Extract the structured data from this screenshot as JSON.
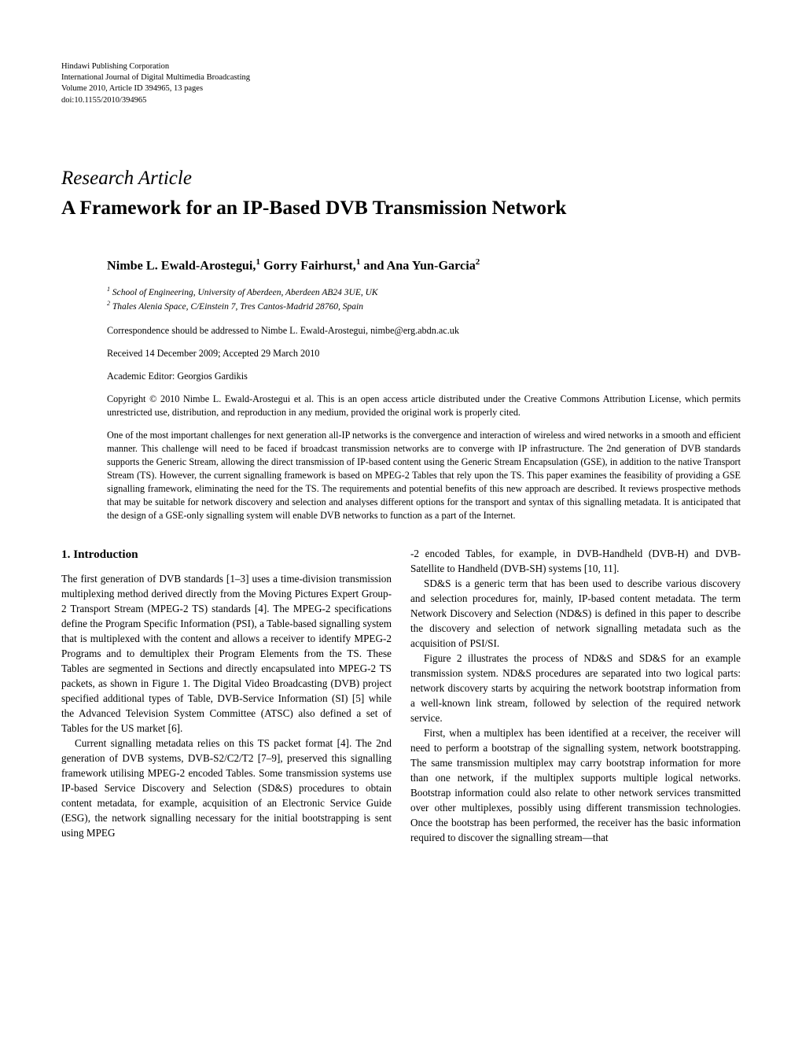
{
  "journal": {
    "publisher": "Hindawi Publishing Corporation",
    "name": "International Journal of Digital Multimedia Broadcasting",
    "volume": "Volume 2010, Article ID 394965, 13 pages",
    "doi": "doi:10.1155/2010/394965"
  },
  "article_type": "Research Article",
  "title": "A Framework for an IP-Based DVB Transmission Network",
  "authors_html": "Nimbe L. Ewald-Arostegui,<sup>1</sup> Gorry Fairhurst,<sup>1</sup> and Ana Yun-Garcia<sup>2</sup>",
  "affiliations": {
    "a1": "School of Engineering, University of Aberdeen, Aberdeen AB24 3UE, UK",
    "a2": "Thales Alenia Space, C/Einstein 7, Tres Cantos-Madrid 28760, Spain"
  },
  "correspondence": "Correspondence should be addressed to Nimbe L. Ewald-Arostegui, nimbe@erg.abdn.ac.uk",
  "dates": "Received 14 December 2009; Accepted 29 March 2010",
  "editor": "Academic Editor: Georgios Gardikis",
  "copyright": "Copyright © 2010 Nimbe L. Ewald-Arostegui et al. This is an open access article distributed under the Creative Commons Attribution License, which permits unrestricted use, distribution, and reproduction in any medium, provided the original work is properly cited.",
  "abstract": "One of the most important challenges for next generation all-IP networks is the convergence and interaction of wireless and wired networks in a smooth and efficient manner. This challenge will need to be faced if broadcast transmission networks are to converge with IP infrastructure. The 2nd generation of DVB standards supports the Generic Stream, allowing the direct transmission of IP-based content using the Generic Stream Encapsulation (GSE), in addition to the native Transport Stream (TS). However, the current signalling framework is based on MPEG-2 Tables that rely upon the TS. This paper examines the feasibility of providing a GSE signalling framework, eliminating the need for the TS. The requirements and potential benefits of this new approach are described. It reviews prospective methods that may be suitable for network discovery and selection and analyses different options for the transport and syntax of this signalling metadata. It is anticipated that the design of a GSE-only signalling system will enable DVB networks to function as a part of the Internet.",
  "section1_heading": "1. Introduction",
  "body": {
    "p1": "The first generation of DVB standards [1–3] uses a time-division transmission multiplexing method derived directly from the Moving Pictures Expert Group-2 Transport Stream (MPEG-2 TS) standards [4]. The MPEG-2 specifications define the Program Specific Information (PSI), a Table-based signalling system that is multiplexed with the content and allows a receiver to identify MPEG-2 Programs and to demultiplex their Program Elements from the TS. These Tables are segmented in Sections and directly encapsulated into MPEG-2 TS packets, as shown in Figure 1. The Digital Video Broadcasting (DVB) project specified additional types of Table, DVB-Service Information (SI) [5] while the Advanced Television System Committee (ATSC) also defined a set of Tables for the US market [6].",
    "p2": "Current signalling metadata relies on this TS packet format [4]. The 2nd generation of DVB systems, DVB-S2/C2/T2 [7–9], preserved this signalling framework utilising MPEG-2 encoded Tables. Some transmission systems use IP-based Service Discovery and Selection (SD&S) procedures to obtain content metadata, for example, acquisition of an Electronic Service Guide (ESG), the network signalling necessary for the initial bootstrapping is sent using MPEG",
    "p3": "-2 encoded Tables, for example, in DVB-Handheld (DVB-H) and DVB-Satellite to Handheld (DVB-SH) systems [10, 11].",
    "p4": "SD&S is a generic term that has been used to describe various discovery and selection procedures for, mainly, IP-based content metadata. The term Network Discovery and Selection (ND&S) is defined in this paper to describe the discovery and selection of network signalling metadata such as the acquisition of PSI/SI.",
    "p5": "Figure 2 illustrates the process of ND&S and SD&S for an example transmission system. ND&S procedures are separated into two logical parts: network discovery starts by acquiring the network bootstrap information from a well-known link stream, followed by selection of the required network service.",
    "p6": "First, when a multiplex has been identified at a receiver, the receiver will need to perform a bootstrap of the signalling system, network bootstrapping. The same transmission multiplex may carry bootstrap information for more than one network, if the multiplex supports multiple logical networks. Bootstrap information could also relate to other network services transmitted over other multiplexes, possibly using different transmission technologies. Once the bootstrap has been performed, the receiver has the basic information required to discover the signalling stream—that"
  }
}
